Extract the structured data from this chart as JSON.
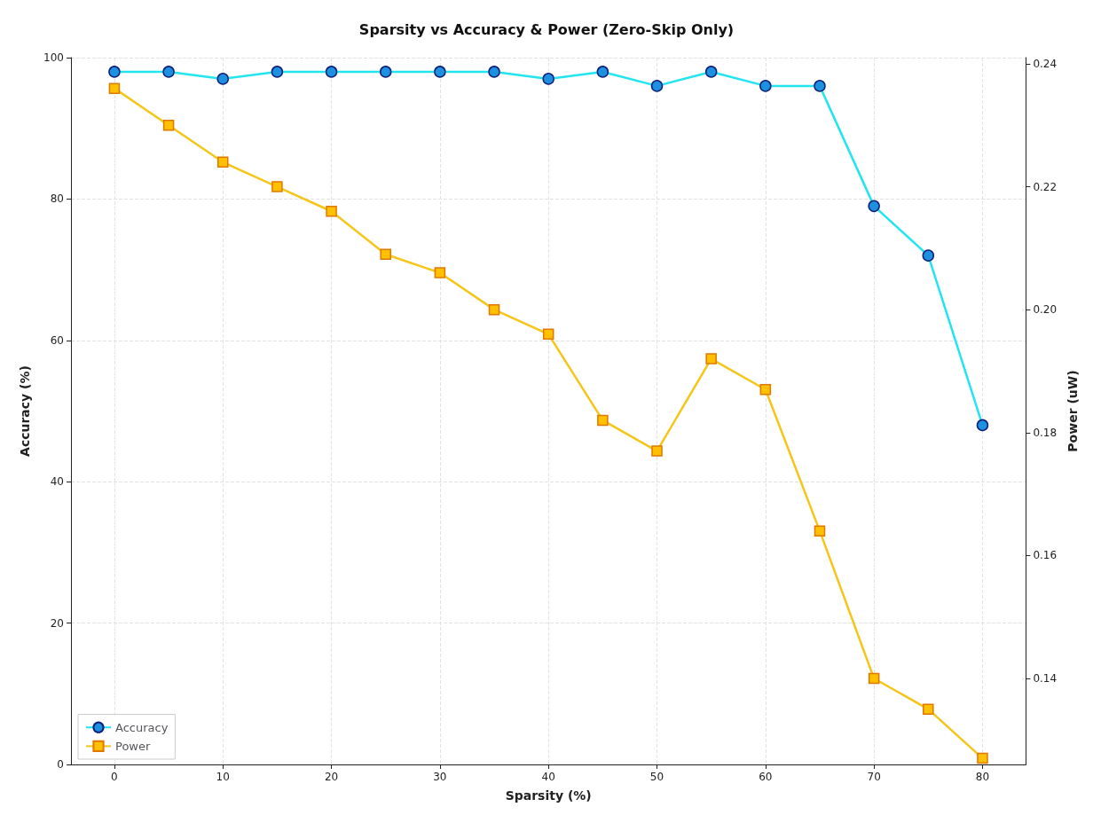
{
  "chart_data": {
    "type": "line",
    "title": "Sparsity vs Accuracy & Power (Zero-Skip Only)",
    "xlabel": "Sparsity (%)",
    "ylabel": "Accuracy (%)",
    "y2label": "Power (uW)",
    "x": [
      0,
      5,
      10,
      15,
      20,
      25,
      30,
      35,
      40,
      45,
      50,
      55,
      60,
      65,
      70,
      75,
      80
    ],
    "xlim": [
      -4,
      84
    ],
    "xticks": [
      0,
      10,
      20,
      30,
      40,
      50,
      60,
      70,
      80
    ],
    "ylim": [
      0,
      100
    ],
    "yticks": [
      0,
      20,
      40,
      60,
      80,
      100
    ],
    "y2lim": [
      0.126,
      0.241
    ],
    "y2ticks": [
      0.14,
      0.16,
      0.18,
      {
        "value": 0.2,
        "label": "0.20"
      },
      0.22,
      0.24
    ],
    "grid": true,
    "legend": "bottom left",
    "series": [
      {
        "name": "Accuracy",
        "color": "#22e5ef",
        "marker": "circle",
        "values": [
          98,
          98,
          97,
          98,
          98,
          98,
          98,
          98,
          97,
          98,
          96,
          98,
          96,
          96,
          79,
          72,
          48
        ]
      },
      {
        "name": "Power",
        "color": "#f5c518",
        "marker": "square",
        "axis": "y2",
        "values": [
          0.236,
          0.23,
          0.224,
          0.22,
          0.216,
          0.209,
          0.206,
          0.2,
          0.196,
          0.182,
          0.177,
          0.192,
          0.187,
          0.164,
          0.14,
          0.135,
          0.127
        ]
      }
    ]
  }
}
